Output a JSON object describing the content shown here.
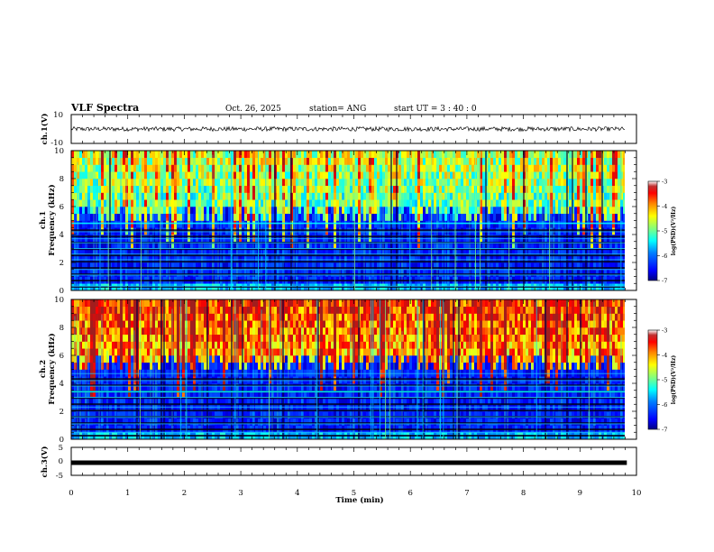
{
  "header": {
    "title": "VLF Spectra",
    "date": "Oct. 26, 2025",
    "station": "station= ANG",
    "start": "start  UT  =   3  : 40 : 0"
  },
  "chart_data": [
    {
      "type": "line",
      "panel": "ch1-waveform",
      "ylabel": "ch.1(V)",
      "ylim": [
        -10,
        10
      ],
      "yticks": [
        "10",
        "-10"
      ],
      "xlim": [
        0,
        10
      ],
      "description_level": 0,
      "trace_amplitude": 1
    },
    {
      "type": "heatmap",
      "panel": "ch1-spectrogram",
      "ylabel_line1": "ch.1",
      "ylabel_line2": "Frequency (kHz)",
      "ylim": [
        0,
        10
      ],
      "yticks": [
        "0",
        "2",
        "4",
        "6",
        "8",
        "10"
      ],
      "xlim": [
        0,
        9.83
      ],
      "colorbar": {
        "label": "log(PSD)(V²/Hz)",
        "range": [
          -7,
          -3
        ],
        "ticks": [
          "-3",
          "-4",
          "-5",
          "-6",
          "-7"
        ],
        "colors": [
          "#000080",
          "#0000ff",
          "#0080ff",
          "#00ffff",
          "#80ff80",
          "#ffff00",
          "#ff8000",
          "#ff0000",
          "#800000",
          "#ffffff"
        ]
      },
      "bands_khz": [
        0.3,
        1.1,
        1.5,
        2.2,
        2.6,
        3.0,
        3.4,
        3.7,
        4.2,
        4.8
      ],
      "strong_band_khz": 4.8
    },
    {
      "type": "heatmap",
      "panel": "ch2-spectrogram",
      "ylabel_line1": "ch.2",
      "ylabel_line2": "Frequency (kHz)",
      "ylim": [
        0,
        10
      ],
      "yticks": [
        "0",
        "2",
        "4",
        "6",
        "8",
        "10"
      ],
      "xlim": [
        0,
        9.83
      ],
      "colorbar": {
        "label": "log(PSD)(V²/Hz)",
        "range": [
          -7,
          -3
        ],
        "ticks": [
          "-3",
          "-4",
          "-5",
          "-6",
          "-7"
        ]
      },
      "bands_khz": [
        0.5,
        1.1,
        1.6,
        2.3,
        3.0,
        3.4,
        3.8,
        4.2,
        4.7
      ],
      "strong_band_khz": 3.4
    },
    {
      "type": "line",
      "panel": "ch3-waveform",
      "ylabel": "ch.3(V)",
      "ylim": [
        -5,
        5
      ],
      "yticks": [
        "5",
        "0",
        "-5"
      ],
      "xlim": [
        0,
        10
      ],
      "level": -0.5
    }
  ],
  "xaxis": {
    "label": "Time (min)",
    "ticks": [
      "0",
      "1",
      "2",
      "3",
      "4",
      "5",
      "6",
      "7",
      "8",
      "9",
      "10"
    ],
    "range": [
      0,
      10
    ]
  }
}
